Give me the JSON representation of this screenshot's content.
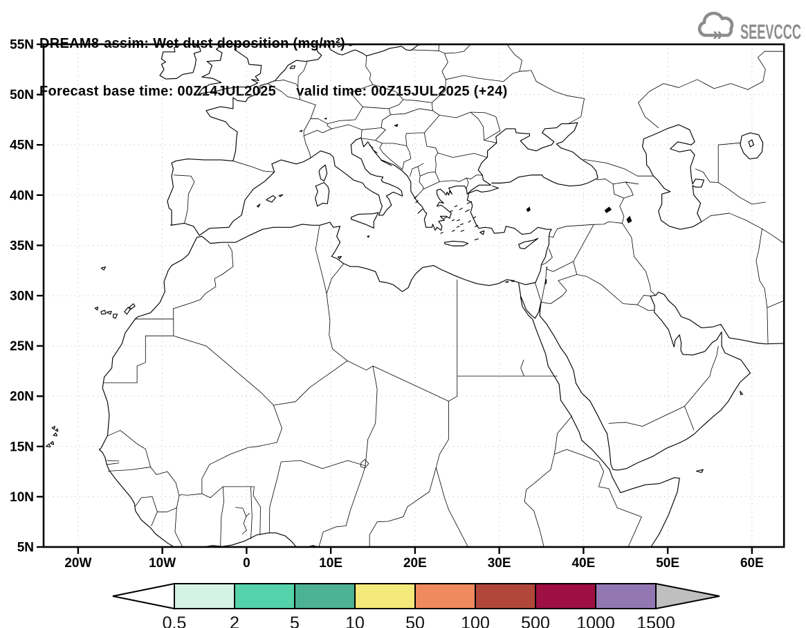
{
  "header": {
    "title_line1": "DREAM8-assim: Wet dust deposition (mg/m²)",
    "title_line2": "Forecast base time: 00Z14JUL2025     valid time: 00Z15JUL2025 (+24)"
  },
  "logo": {
    "text": "SEEVCCC",
    "color": "#8d8d8d"
  },
  "map": {
    "lat_ticks": [
      {
        "label": "55N",
        "value": 55
      },
      {
        "label": "50N",
        "value": 50
      },
      {
        "label": "45N",
        "value": 45
      },
      {
        "label": "40N",
        "value": 40
      },
      {
        "label": "35N",
        "value": 35
      },
      {
        "label": "30N",
        "value": 30
      },
      {
        "label": "25N",
        "value": 25
      },
      {
        "label": "20N",
        "value": 20
      },
      {
        "label": "15N",
        "value": 15
      },
      {
        "label": "10N",
        "value": 10
      },
      {
        "label": "5N",
        "value": 5
      }
    ],
    "lon_ticks": [
      {
        "label": "20W",
        "value": -20
      },
      {
        "label": "10W",
        "value": -10
      },
      {
        "label": "0",
        "value": 0
      },
      {
        "label": "10E",
        "value": 10
      },
      {
        "label": "20E",
        "value": 20
      },
      {
        "label": "30E",
        "value": 30
      },
      {
        "label": "40E",
        "value": 40
      },
      {
        "label": "50E",
        "value": 50
      },
      {
        "label": "60E",
        "value": 60
      }
    ]
  },
  "colorbar": {
    "labels": [
      "0.5",
      "2",
      "5",
      "10",
      "50",
      "100",
      "500",
      "1000",
      "1500"
    ],
    "cell_colors": [
      "#d5f2e6",
      "#54d2a9",
      "#4cb292",
      "#f4e97b",
      "#ef8a5e",
      "#b0473a",
      "#9e1041",
      "#9377b2"
    ],
    "below_min_color": "#ffffff",
    "above_max_color": "#bfbfbf"
  },
  "chart_data": {
    "type": "map-contour",
    "title": "DREAM8-assim: Wet dust deposition (mg/m²)",
    "model": "DREAM8-assim",
    "variable": "Wet dust deposition",
    "units": "mg/m²",
    "forecast_base_time": "00Z14JUL2025",
    "valid_time": "00Z15JUL2025",
    "forecast_hour": "+24",
    "lon_range_deg": [
      -24.1,
      63.8
    ],
    "lat_range_deg": [
      5,
      55
    ],
    "lat_tick_interval_deg": 5,
    "lon_tick_interval_deg": 10,
    "grid": "dotted",
    "legend_position": "bottom",
    "contour_levels_mg_m2": [
      0.5,
      2,
      5,
      10,
      50,
      100,
      500,
      1000,
      1500
    ],
    "level_colors": [
      "#ffffff",
      "#d5f2e6",
      "#54d2a9",
      "#4cb292",
      "#f4e97b",
      "#ef8a5e",
      "#b0473a",
      "#9e1041",
      "#9377b2",
      "#bfbfbf"
    ],
    "filled_regions": [],
    "note": "No wet dust deposition at or above 0.5 mg/m² is shaded anywhere in the domain; the map shows only coastlines, country borders and the graduated legend."
  }
}
